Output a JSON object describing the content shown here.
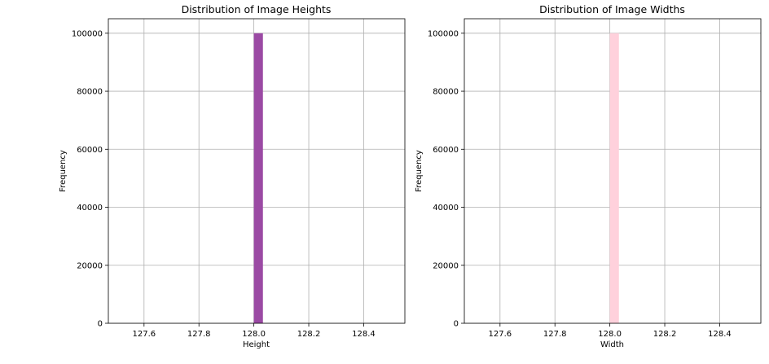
{
  "chart_data": [
    {
      "type": "bar",
      "title": "Distribution of Image Heights",
      "xlabel": "Height",
      "ylabel": "Frequency",
      "xlim": [
        127.47,
        128.55
      ],
      "ylim": [
        0,
        105000
      ],
      "xticks": [
        127.6,
        127.8,
        128.0,
        128.2,
        128.4
      ],
      "xtick_labels": [
        "127.6",
        "127.8",
        "128.0",
        "128.2",
        "128.4"
      ],
      "yticks": [
        0,
        20000,
        40000,
        60000,
        80000,
        100000
      ],
      "ytick_labels": [
        "0",
        "20000",
        "40000",
        "60000",
        "80000",
        "100000"
      ],
      "grid": true,
      "color": "#9b4aa4",
      "bars": [
        {
          "x0": 128.0,
          "x1": 128.033,
          "value": 100000
        }
      ]
    },
    {
      "type": "bar",
      "title": "Distribution of Image Widths",
      "xlabel": "Width",
      "ylabel": "Frequency",
      "xlim": [
        127.47,
        128.55
      ],
      "ylim": [
        0,
        105000
      ],
      "xticks": [
        127.6,
        127.8,
        128.0,
        128.2,
        128.4
      ],
      "xtick_labels": [
        "127.6",
        "127.8",
        "128.0",
        "128.2",
        "128.4"
      ],
      "yticks": [
        0,
        20000,
        40000,
        60000,
        80000,
        100000
      ],
      "ytick_labels": [
        "0",
        "20000",
        "40000",
        "60000",
        "80000",
        "100000"
      ],
      "grid": true,
      "color": "#ffd1dc",
      "bars": [
        {
          "x0": 128.0,
          "x1": 128.033,
          "value": 100000
        }
      ]
    }
  ]
}
